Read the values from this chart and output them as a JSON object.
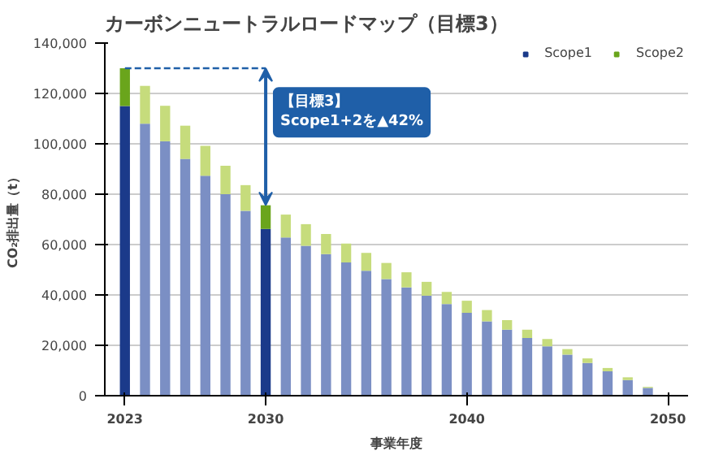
{
  "chart_data": {
    "type": "bar",
    "title": "カーボンニュートラルロードマップ（目標3）",
    "xlabel": "事業年度",
    "ylabel": "CO₂排出量（t）",
    "x": [
      2023,
      2024,
      2025,
      2026,
      2027,
      2028,
      2029,
      2030,
      2031,
      2032,
      2033,
      2034,
      2035,
      2036,
      2037,
      2038,
      2039,
      2040,
      2041,
      2042,
      2043,
      2044,
      2045,
      2046,
      2047,
      2048,
      2049
    ],
    "stacked": true,
    "series": [
      {
        "name": "Scope1",
        "color": "#1b3a8a",
        "colors": [
          "#1b3a8a",
          "#7b8fc4",
          "#7b8fc4",
          "#7b8fc4",
          "#7b8fc4",
          "#7b8fc4",
          "#7b8fc4",
          "#1b3a8a",
          "#7b8fc4",
          "#7b8fc4",
          "#7b8fc4",
          "#7b8fc4",
          "#7b8fc4",
          "#7b8fc4",
          "#7b8fc4",
          "#7b8fc4",
          "#7b8fc4",
          "#7b8fc4",
          "#7b8fc4",
          "#7b8fc4",
          "#7b8fc4",
          "#7b8fc4",
          "#7b8fc4",
          "#7b8fc4",
          "#7b8fc4",
          "#7b8fc4",
          "#7b8fc4"
        ],
        "values": [
          115000,
          108000,
          101000,
          94000,
          87300,
          80000,
          73400,
          66200,
          62800,
          59500,
          56200,
          52900,
          49600,
          46300,
          43000,
          39700,
          36400,
          32900,
          29500,
          26200,
          22900,
          19600,
          16300,
          13000,
          9700,
          6200,
          3100
        ]
      },
      {
        "name": "Scope2",
        "color": "#6aa51c",
        "colors": [
          "#6aa51c",
          "#c6dc7c",
          "#c6dc7c",
          "#c6dc7c",
          "#c6dc7c",
          "#c6dc7c",
          "#c6dc7c",
          "#6aa51c",
          "#c6dc7c",
          "#c6dc7c",
          "#c6dc7c",
          "#c6dc7c",
          "#c6dc7c",
          "#c6dc7c",
          "#c6dc7c",
          "#c6dc7c",
          "#c6dc7c",
          "#c6dc7c",
          "#c6dc7c",
          "#c6dc7c",
          "#c6dc7c",
          "#c6dc7c",
          "#c6dc7c",
          "#c6dc7c",
          "#c6dc7c",
          "#c6dc7c",
          "#c6dc7c"
        ],
        "values": [
          15000,
          15000,
          14100,
          13200,
          11900,
          11300,
          10200,
          9400,
          9100,
          8600,
          8000,
          7500,
          7100,
          6400,
          6000,
          5500,
          4800,
          4800,
          4500,
          3800,
          3300,
          2900,
          2200,
          1800,
          1300,
          1100,
          400
        ]
      },
      {
        "type": "line",
        "x": [
          2023,
          2030
        ],
        "values": [
          130000,
          130000
        ],
        "color": "#1f5fa8",
        "line_style": "dashed"
      }
    ],
    "xlim": [
      2022,
      2051
    ],
    "xticks": [
      2023,
      2030,
      2040,
      2050
    ],
    "ylim": [
      0,
      140000
    ],
    "yticks": [
      0,
      {
        "value": 20000,
        "label": "20,000"
      },
      {
        "value": 40000,
        "label": "40,000"
      },
      {
        "value": 60000,
        "label": "60,000"
      },
      {
        "value": 80000,
        "label": "80,000"
      },
      {
        "value": 100000,
        "label": "100,000"
      },
      {
        "value": 120000,
        "label": "120,000"
      },
      {
        "value": 140000,
        "label": "140,000"
      }
    ],
    "grid": "y",
    "legend": "top right",
    "annotations": [
      "【目標3】\nScope1+2を▲42%"
    ]
  }
}
